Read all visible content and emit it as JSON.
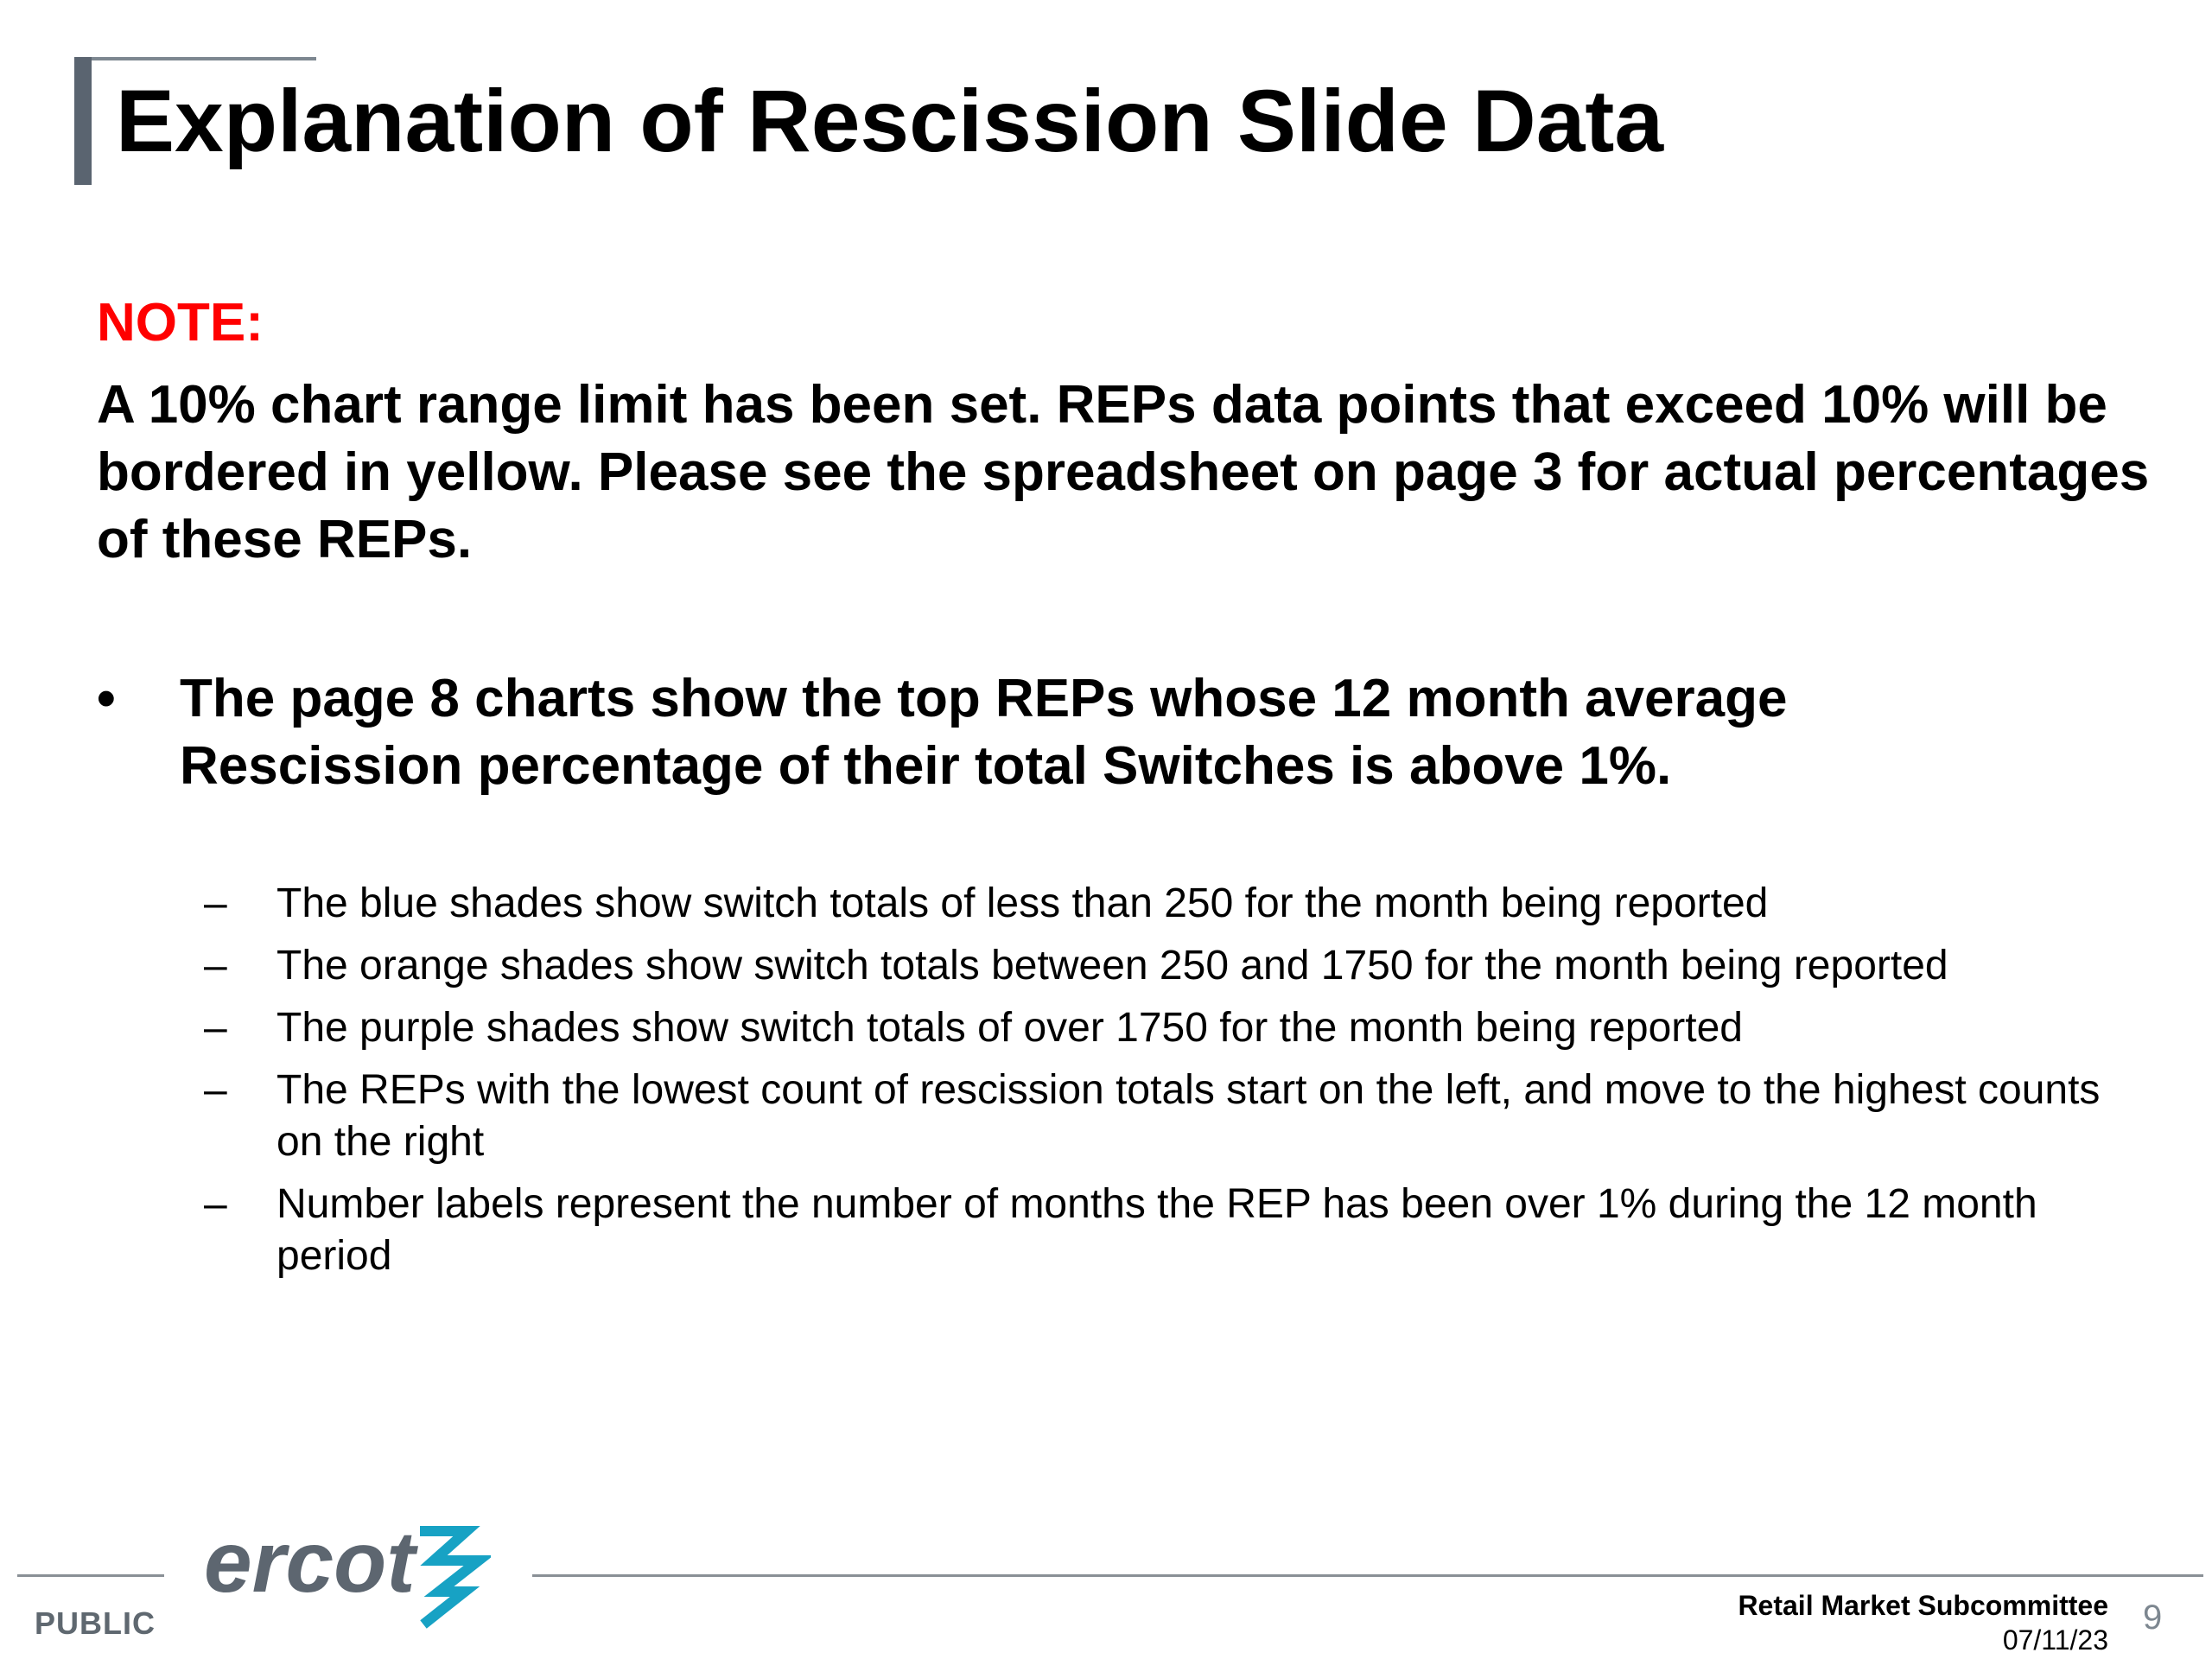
{
  "slide": {
    "title": "Explanation of Rescission Slide Data",
    "note_label": "NOTE:",
    "note_text": "A 10% chart range limit has been set. REPs data points that exceed 10% will be bordered in yellow. Please see the spreadsheet on page 3 for actual percentages of these REPs.",
    "bullet_symbol": "•",
    "bullet_text": "The page 8 charts show the top REPs whose 12 month average Rescission percentage of their total Switches is above 1%.",
    "sub_bullet_symbol": "–",
    "sub_bullets": [
      "The blue shades show switch totals of less than 250 for the month being reported",
      "The orange shades show switch totals between 250 and 1750 for the month being reported",
      "The purple shades show switch totals of over 1750 for the month being reported",
      "The REPs with the lowest count of rescission totals start on the left, and move to the highest counts on the right",
      "Number labels represent the number of months the REP has been over 1% during the 12 month period"
    ]
  },
  "footer": {
    "classification": "PUBLIC",
    "logo_text": "ercot",
    "committee": "Retail Market Subcommittee",
    "date": "07/11/23",
    "page_number": "9"
  },
  "colors": {
    "note_label": "#ff0000",
    "title_accent": "#5a6470",
    "logo_gray": "#5d6670",
    "logo_teal": "#17a2c4"
  },
  "icons": {
    "logo_mark": "ercot-bolt-logo-icon"
  }
}
